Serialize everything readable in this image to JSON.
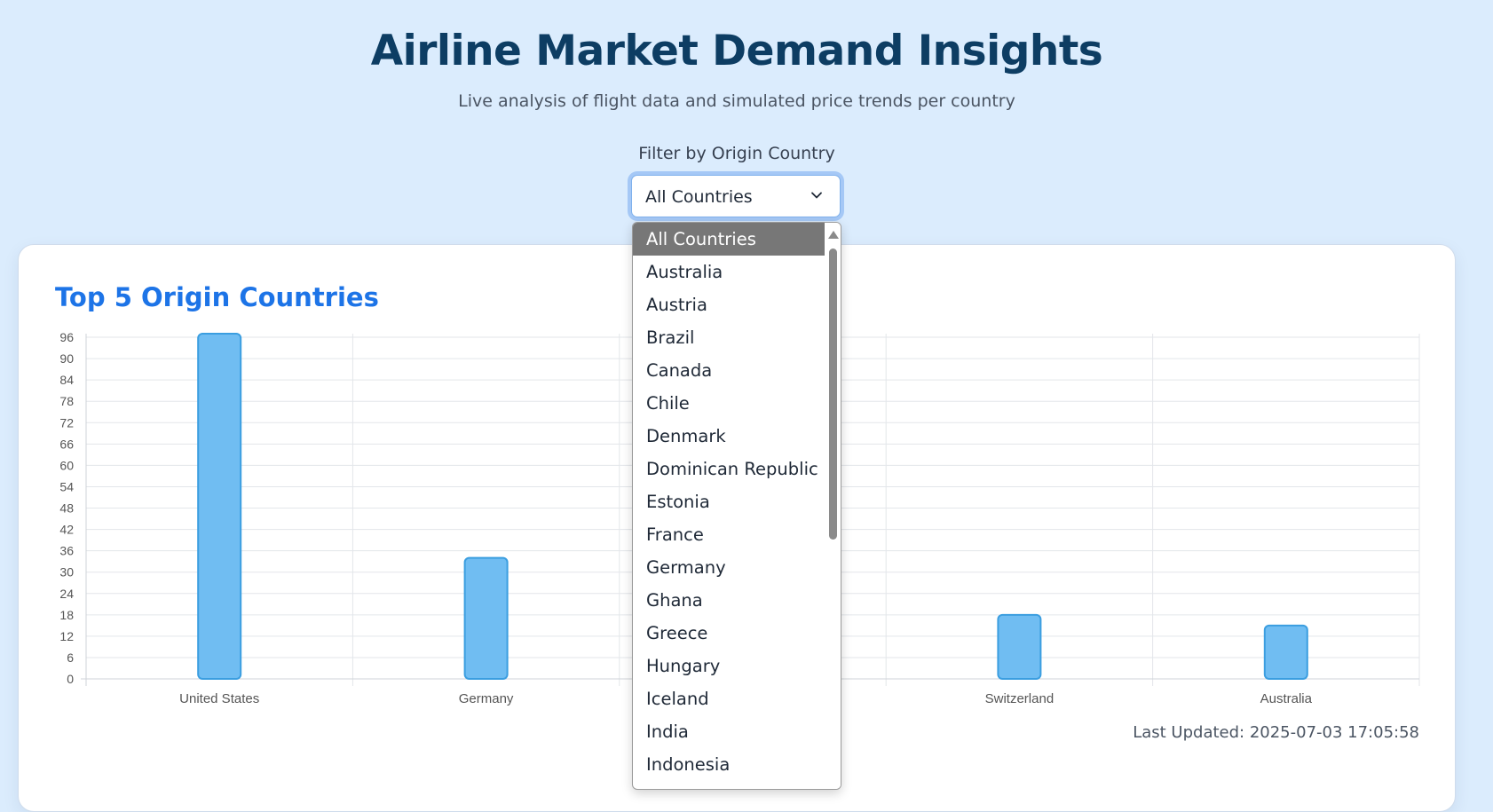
{
  "header": {
    "title": "Airline Market Demand Insights",
    "subtitle": "Live analysis of flight data and simulated price trends per country"
  },
  "filter": {
    "label": "Filter by Origin Country",
    "selected": "All Countries",
    "options": [
      "All Countries",
      "Australia",
      "Austria",
      "Brazil",
      "Canada",
      "Chile",
      "Denmark",
      "Dominican Republic",
      "Estonia",
      "France",
      "Germany",
      "Ghana",
      "Greece",
      "Hungary",
      "Iceland",
      "India",
      "Indonesia"
    ]
  },
  "card": {
    "title": "Top 5 Origin Countries",
    "last_updated": "Last Updated: 2025-07-03 17:05:58"
  },
  "colors": {
    "bar_fill": "#70bdf2",
    "bar_stroke": "#3b9ee0",
    "title_accent": "#1d74e7",
    "heading": "#0d3d63"
  },
  "chart_data": {
    "type": "bar",
    "categories": [
      "United States",
      "Germany",
      "",
      "Switzerland",
      "Australia"
    ],
    "values": [
      97,
      34,
      null,
      18,
      15
    ],
    "y_ticks": [
      0,
      6,
      12,
      18,
      24,
      30,
      36,
      42,
      48,
      54,
      60,
      66,
      72,
      78,
      84,
      90,
      96
    ],
    "ylim": [
      0,
      97
    ],
    "grid": true,
    "legend": "none"
  }
}
